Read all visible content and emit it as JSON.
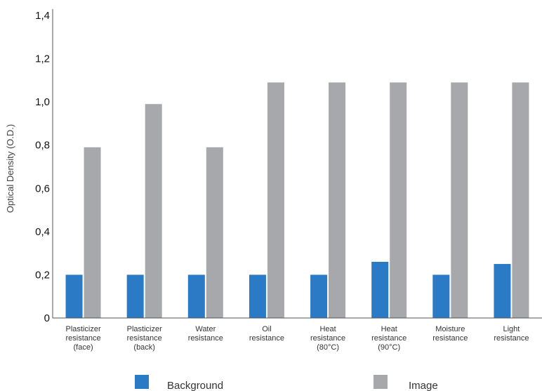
{
  "chart_data": {
    "type": "bar",
    "ylabel": "Optical Density (O.D.)",
    "xlabel": "",
    "ylim": [
      0,
      1.4
    ],
    "yticks": [
      "0",
      "0,2",
      "0,4",
      "0,6",
      "0,8",
      "1,0",
      "1,2",
      "1,4"
    ],
    "ytick_values": [
      0,
      0.2,
      0.4,
      0.6,
      0.8,
      1.0,
      1.2,
      1.4
    ],
    "grid": false,
    "legend_position": "bottom",
    "categories": [
      [
        "Plasticizer",
        "resistance",
        "(face)"
      ],
      [
        "Plasticizer",
        "resistance",
        "(back)"
      ],
      [
        "Water",
        "resistance"
      ],
      [
        "Oil",
        "resistance"
      ],
      [
        "Heat",
        "resistance",
        "(80°C)"
      ],
      [
        "Heat",
        "resistance",
        "(90°C)"
      ],
      [
        "Moisture",
        "resistance"
      ],
      [
        "Light",
        "resistance"
      ]
    ],
    "series": [
      {
        "name": "Background",
        "color": "#2a7ac6",
        "values": [
          0.2,
          0.2,
          0.2,
          0.2,
          0.2,
          0.26,
          0.2,
          0.25
        ]
      },
      {
        "name": "Image",
        "color": "#a7a8ab",
        "values": [
          0.79,
          0.99,
          0.79,
          1.09,
          1.09,
          1.09,
          1.09,
          1.09
        ]
      }
    ]
  }
}
